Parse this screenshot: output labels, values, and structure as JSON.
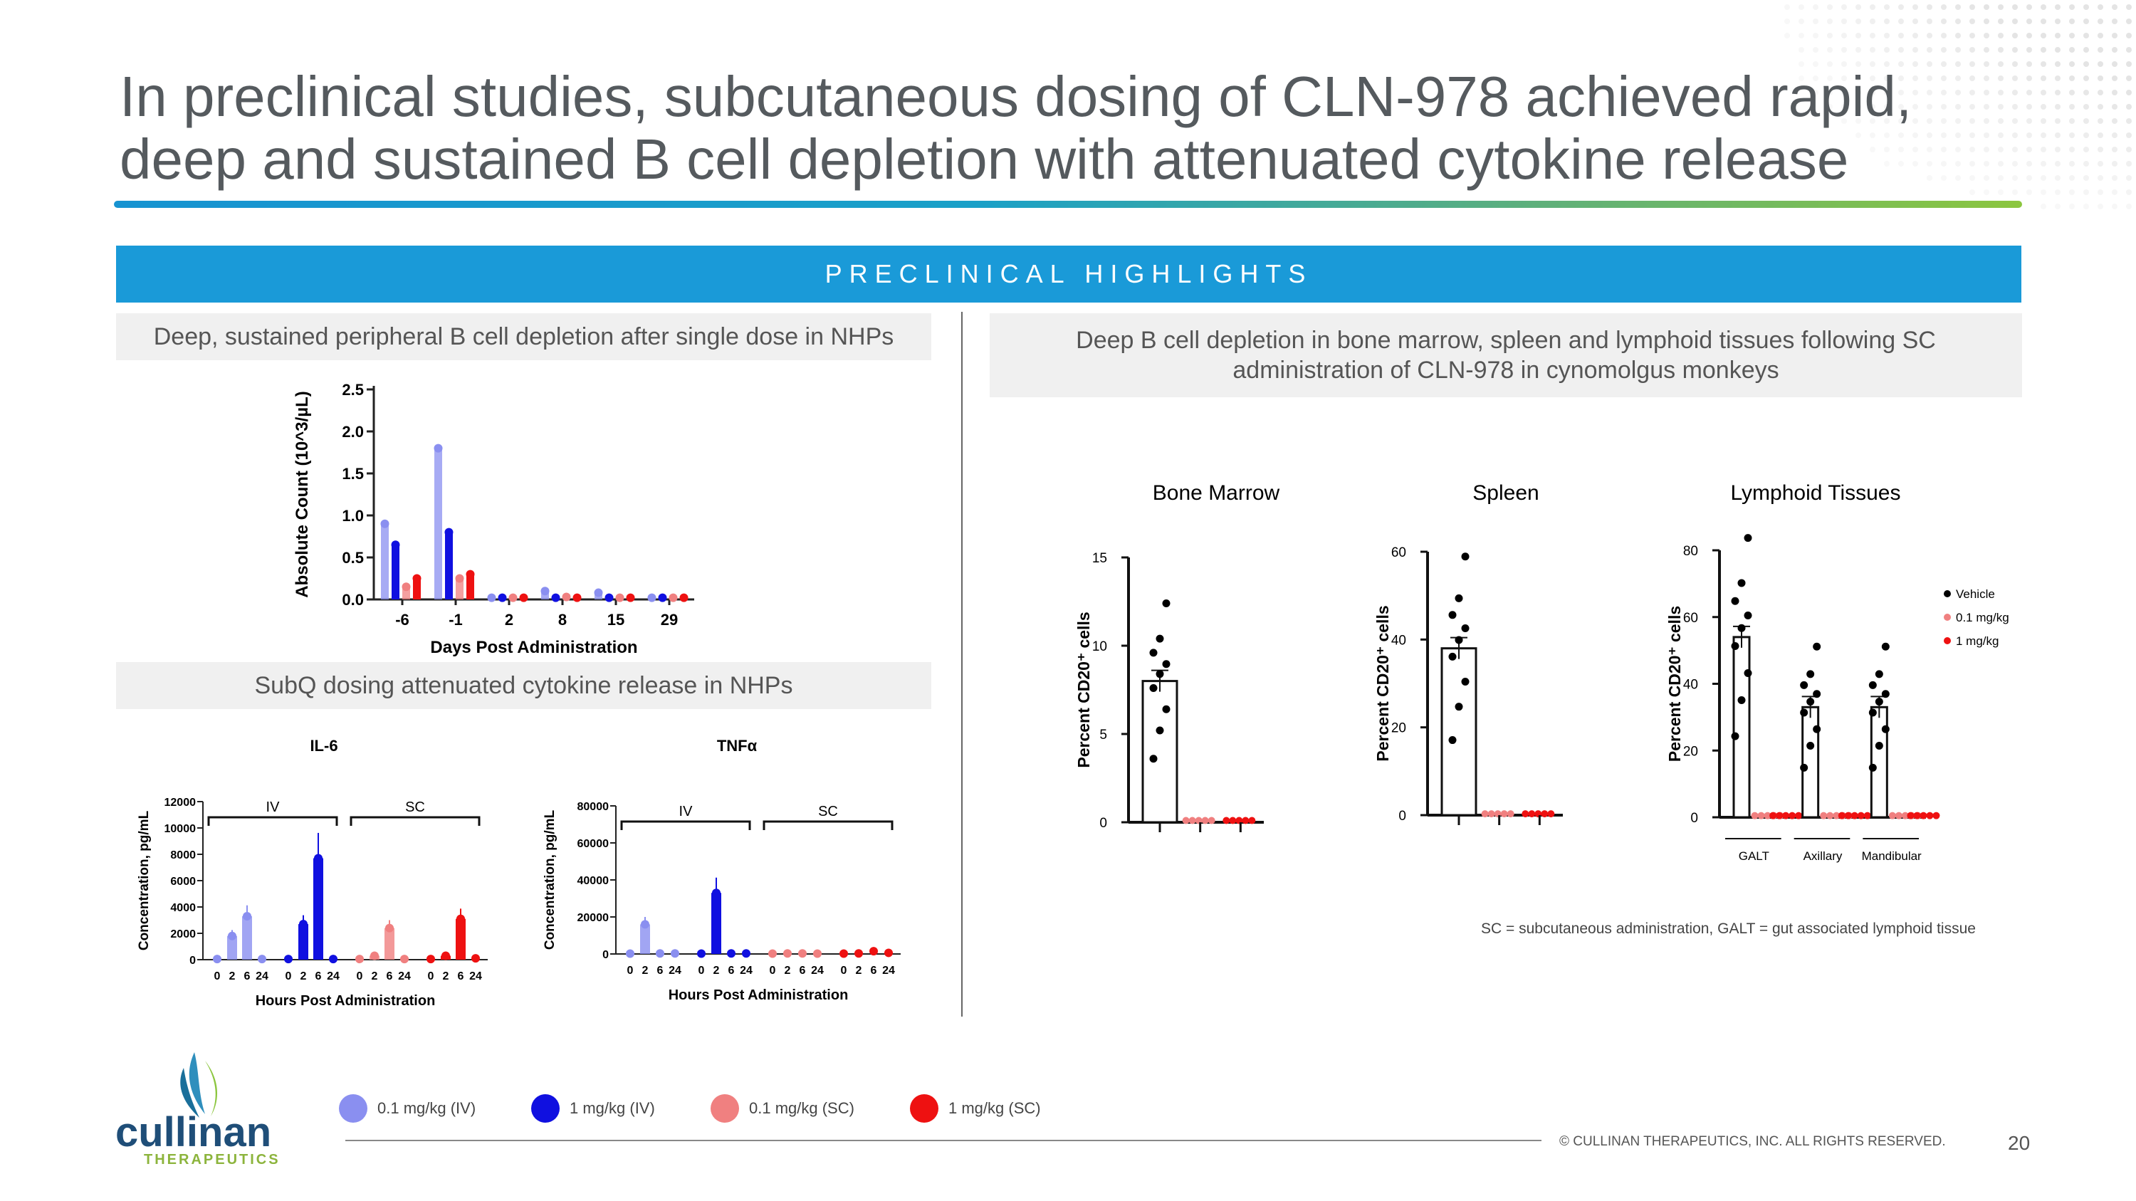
{
  "title": "In preclinical studies, subcutaneous dosing of CLN-978 achieved rapid, deep and sustained B cell depletion with attenuated cytokine release",
  "banner": "PRECLINICAL HIGHLIGHTS",
  "left_subhead_1": "Deep, sustained peripheral B cell depletion after single dose in NHPs",
  "left_subhead_2": "SubQ dosing attenuated cytokine release in NHPs",
  "right_subhead": "Deep B cell depletion in bone marrow, spleen and lymphoid tissues following SC administration of CLN-978 in cynomolgus monkeys",
  "footnote": "SC = subcutaneous administration, GALT = gut associated lymphoid tissue",
  "legend": [
    {
      "label": "0.1 mg/kg (IV)",
      "color": "#8a8ff0"
    },
    {
      "label": "1 mg/kg (IV)",
      "color": "#1010e0"
    },
    {
      "label": "0.1 mg/kg (SC)",
      "color": "#f08080"
    },
    {
      "label": "1 mg/kg (SC)",
      "color": "#ee1111"
    }
  ],
  "copyright": "© CULLINAN THERAPEUTICS, INC. ALL RIGHTS RESERVED.",
  "page_number": "20",
  "logo": {
    "name": "cullinan",
    "sub": "THERAPEUTICS"
  },
  "chart_data": [
    {
      "type": "bar",
      "id": "bcell-depletion",
      "xlabel": "Days Post Administration",
      "ylabel": "Absolute Count (10^3/µL)",
      "categories": [
        "-6",
        "-1",
        "2",
        "8",
        "15",
        "29"
      ],
      "ylim": [
        0,
        2.5
      ],
      "yticks": [
        "0.0",
        "0.5",
        "1.0",
        "1.5",
        "2.0",
        "2.5"
      ],
      "series": [
        {
          "values": [
            0.9,
            1.8,
            0.02,
            0.1,
            0.08,
            0.02
          ]
        },
        {
          "values": [
            0.65,
            0.8,
            0.02,
            0.02,
            0.02,
            0.02
          ]
        },
        {
          "values": [
            0.15,
            0.25,
            0.02,
            0.03,
            0.02,
            0.02
          ]
        },
        {
          "values": [
            0.25,
            0.3,
            0.02,
            0.02,
            0.02,
            0.02
          ]
        }
      ]
    },
    {
      "type": "bar",
      "id": "il6",
      "title": "IL-6",
      "xlabel": "Hours Post Administration",
      "ylabel": "Concentration, pg/mL",
      "ylim": [
        0,
        12000
      ],
      "yticks": [
        "0",
        "2000",
        "4000",
        "6000",
        "8000",
        "10000",
        "12000"
      ],
      "group_labels": [
        "IV",
        "SC"
      ],
      "categories": [
        "0",
        "2",
        "6",
        "24"
      ],
      "series": [
        {
          "values": [
            50,
            1800,
            3300,
            50
          ]
        },
        {
          "values": [
            50,
            2700,
            7700,
            50
          ]
        },
        {
          "values": [
            50,
            300,
            2400,
            50
          ]
        },
        {
          "values": [
            50,
            300,
            3100,
            100
          ]
        }
      ]
    },
    {
      "type": "bar",
      "id": "tnfa",
      "title": "TNFα",
      "xlabel": "Hours Post Administration",
      "ylabel": "Concentration, pg/mL",
      "ylim": [
        0,
        80000
      ],
      "yticks": [
        "0",
        "20000",
        "40000",
        "60000",
        "80000"
      ],
      "group_labels": [
        "IV",
        "SC"
      ],
      "categories": [
        "0",
        "2",
        "6",
        "24"
      ],
      "series": [
        {
          "values": [
            200,
            16000,
            300,
            300
          ]
        },
        {
          "values": [
            200,
            33000,
            300,
            300
          ]
        },
        {
          "values": [
            200,
            300,
            300,
            200
          ]
        },
        {
          "values": [
            200,
            300,
            1500,
            600
          ]
        }
      ]
    },
    {
      "type": "bar",
      "id": "bone-marrow",
      "title": "Bone Marrow",
      "ylabel": "Percent CD20⁺ cells",
      "ylim": [
        0,
        15
      ],
      "yticks": [
        "0",
        "5",
        "10",
        "15"
      ],
      "series": [
        {
          "name": "Vehicle",
          "values": [
            8.0
          ]
        },
        {
          "name": "0.1 mg/kg",
          "values": [
            0.1
          ]
        },
        {
          "name": "1 mg/kg",
          "values": [
            0.1
          ]
        }
      ]
    },
    {
      "type": "bar",
      "id": "spleen",
      "title": "Spleen",
      "ylabel": "Percent CD20⁺ cells",
      "ylim": [
        0,
        60
      ],
      "yticks": [
        "0",
        "20",
        "40",
        "60"
      ],
      "series": [
        {
          "name": "Vehicle",
          "values": [
            38
          ]
        },
        {
          "name": "0.1 mg/kg",
          "values": [
            0.3
          ]
        },
        {
          "name": "1 mg/kg",
          "values": [
            0.3
          ]
        }
      ]
    },
    {
      "type": "bar",
      "id": "lymphoid",
      "title": "Lymphoid Tissues",
      "ylabel": "Percent CD20⁺ cells",
      "ylim": [
        0,
        80
      ],
      "yticks": [
        "0",
        "20",
        "40",
        "60",
        "80"
      ],
      "categories": [
        "GALT",
        "Axillary",
        "Mandibular"
      ],
      "legend": [
        "Vehicle",
        "0.1 mg/kg",
        "1 mg/kg"
      ],
      "series": [
        {
          "name": "Vehicle",
          "values": [
            54,
            33,
            33
          ]
        },
        {
          "name": "0.1 mg/kg",
          "values": [
            0.5,
            0.5,
            0.5
          ]
        },
        {
          "name": "1 mg/kg",
          "values": [
            0.5,
            0.5,
            0.5
          ]
        }
      ]
    }
  ]
}
